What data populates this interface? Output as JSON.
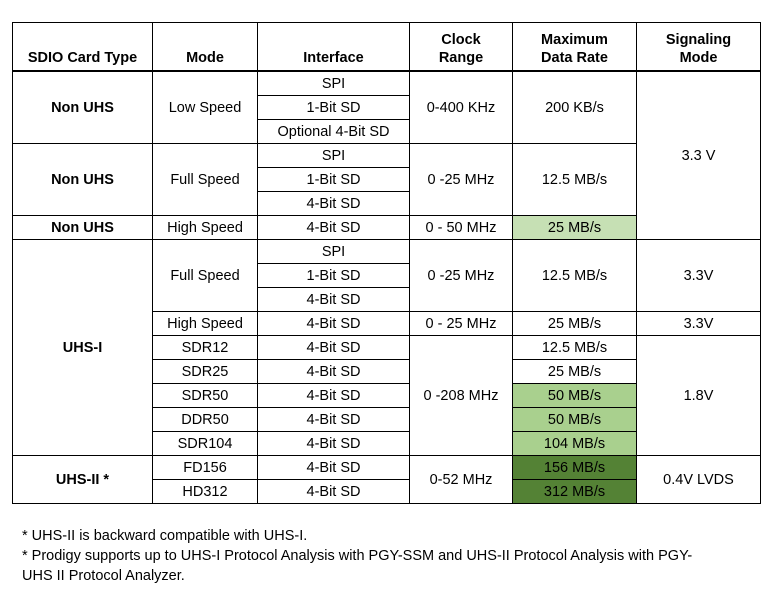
{
  "headers": {
    "type": "SDIO Card Type",
    "mode": "Mode",
    "interface": "Interface",
    "clock_1": "Clock",
    "clock_2": "Range",
    "rate_1": "Maximum",
    "rate_2": "Data Rate",
    "sig_1": "Signaling",
    "sig_2": "Mode"
  },
  "rows": {
    "g1": {
      "type": "Non UHS",
      "mode": "Low Speed",
      "iface": [
        "SPI",
        "1-Bit SD",
        "Optional 4-Bit SD"
      ],
      "clock": "0-400 KHz",
      "rate": "200 KB/s"
    },
    "g2": {
      "type": "Non UHS",
      "mode": "Full Speed",
      "iface": [
        "SPI",
        "1-Bit SD",
        "4-Bit SD"
      ],
      "clock": "0 -25 MHz",
      "rate": "12.5 MB/s"
    },
    "g3": {
      "type": "Non UHS",
      "mode": "High Speed",
      "iface": "4-Bit SD",
      "clock": "0 - 50 MHz",
      "rate": "25 MB/s"
    },
    "nonuhs_signal": "3.3 V",
    "uhs1": {
      "type": "UHS-I",
      "full": {
        "mode": "Full Speed",
        "iface": [
          "SPI",
          "1-Bit SD",
          "4-Bit SD"
        ],
        "clock": "0 -25 MHz",
        "rate": "12.5 MB/s",
        "signal": "3.3V"
      },
      "high": {
        "mode": "High Speed",
        "iface": "4-Bit SD",
        "clock": "0 - 25 MHz",
        "rate": "25 MB/s",
        "signal": "3.3V"
      },
      "sdr_clock": "0 -208 MHz",
      "sdr_signal": "1.8V",
      "modes": [
        {
          "mode": "SDR12",
          "iface": "4-Bit SD",
          "rate": "12.5 MB/s"
        },
        {
          "mode": "SDR25",
          "iface": "4-Bit SD",
          "rate": "25 MB/s"
        },
        {
          "mode": "SDR50",
          "iface": "4-Bit SD",
          "rate": "50 MB/s"
        },
        {
          "mode": "DDR50",
          "iface": "4-Bit SD",
          "rate": "50 MB/s"
        },
        {
          "mode": "SDR104",
          "iface": "4-Bit SD",
          "rate": "104 MB/s"
        }
      ]
    },
    "uhs2": {
      "type": "UHS-II *",
      "clock": "0-52 MHz",
      "signal": "0.4V LVDS",
      "modes": [
        {
          "mode": "FD156",
          "iface": "4-Bit SD",
          "rate": "156 MB/s"
        },
        {
          "mode": "HD312",
          "iface": "4-Bit SD",
          "rate": "312 MB/s"
        }
      ]
    }
  },
  "highlight_colors": {
    "light": "#c6e0b4",
    "medium": "#a9d08e",
    "dark": "#548235"
  },
  "notes": [
    "* UHS-II is backward compatible with UHS-I.",
    "* Prodigy supports up to UHS-I Protocol Analysis with PGY-SSM and UHS-II Protocol Analysis with PGY-",
    "UHS II Protocol Analyzer."
  ]
}
